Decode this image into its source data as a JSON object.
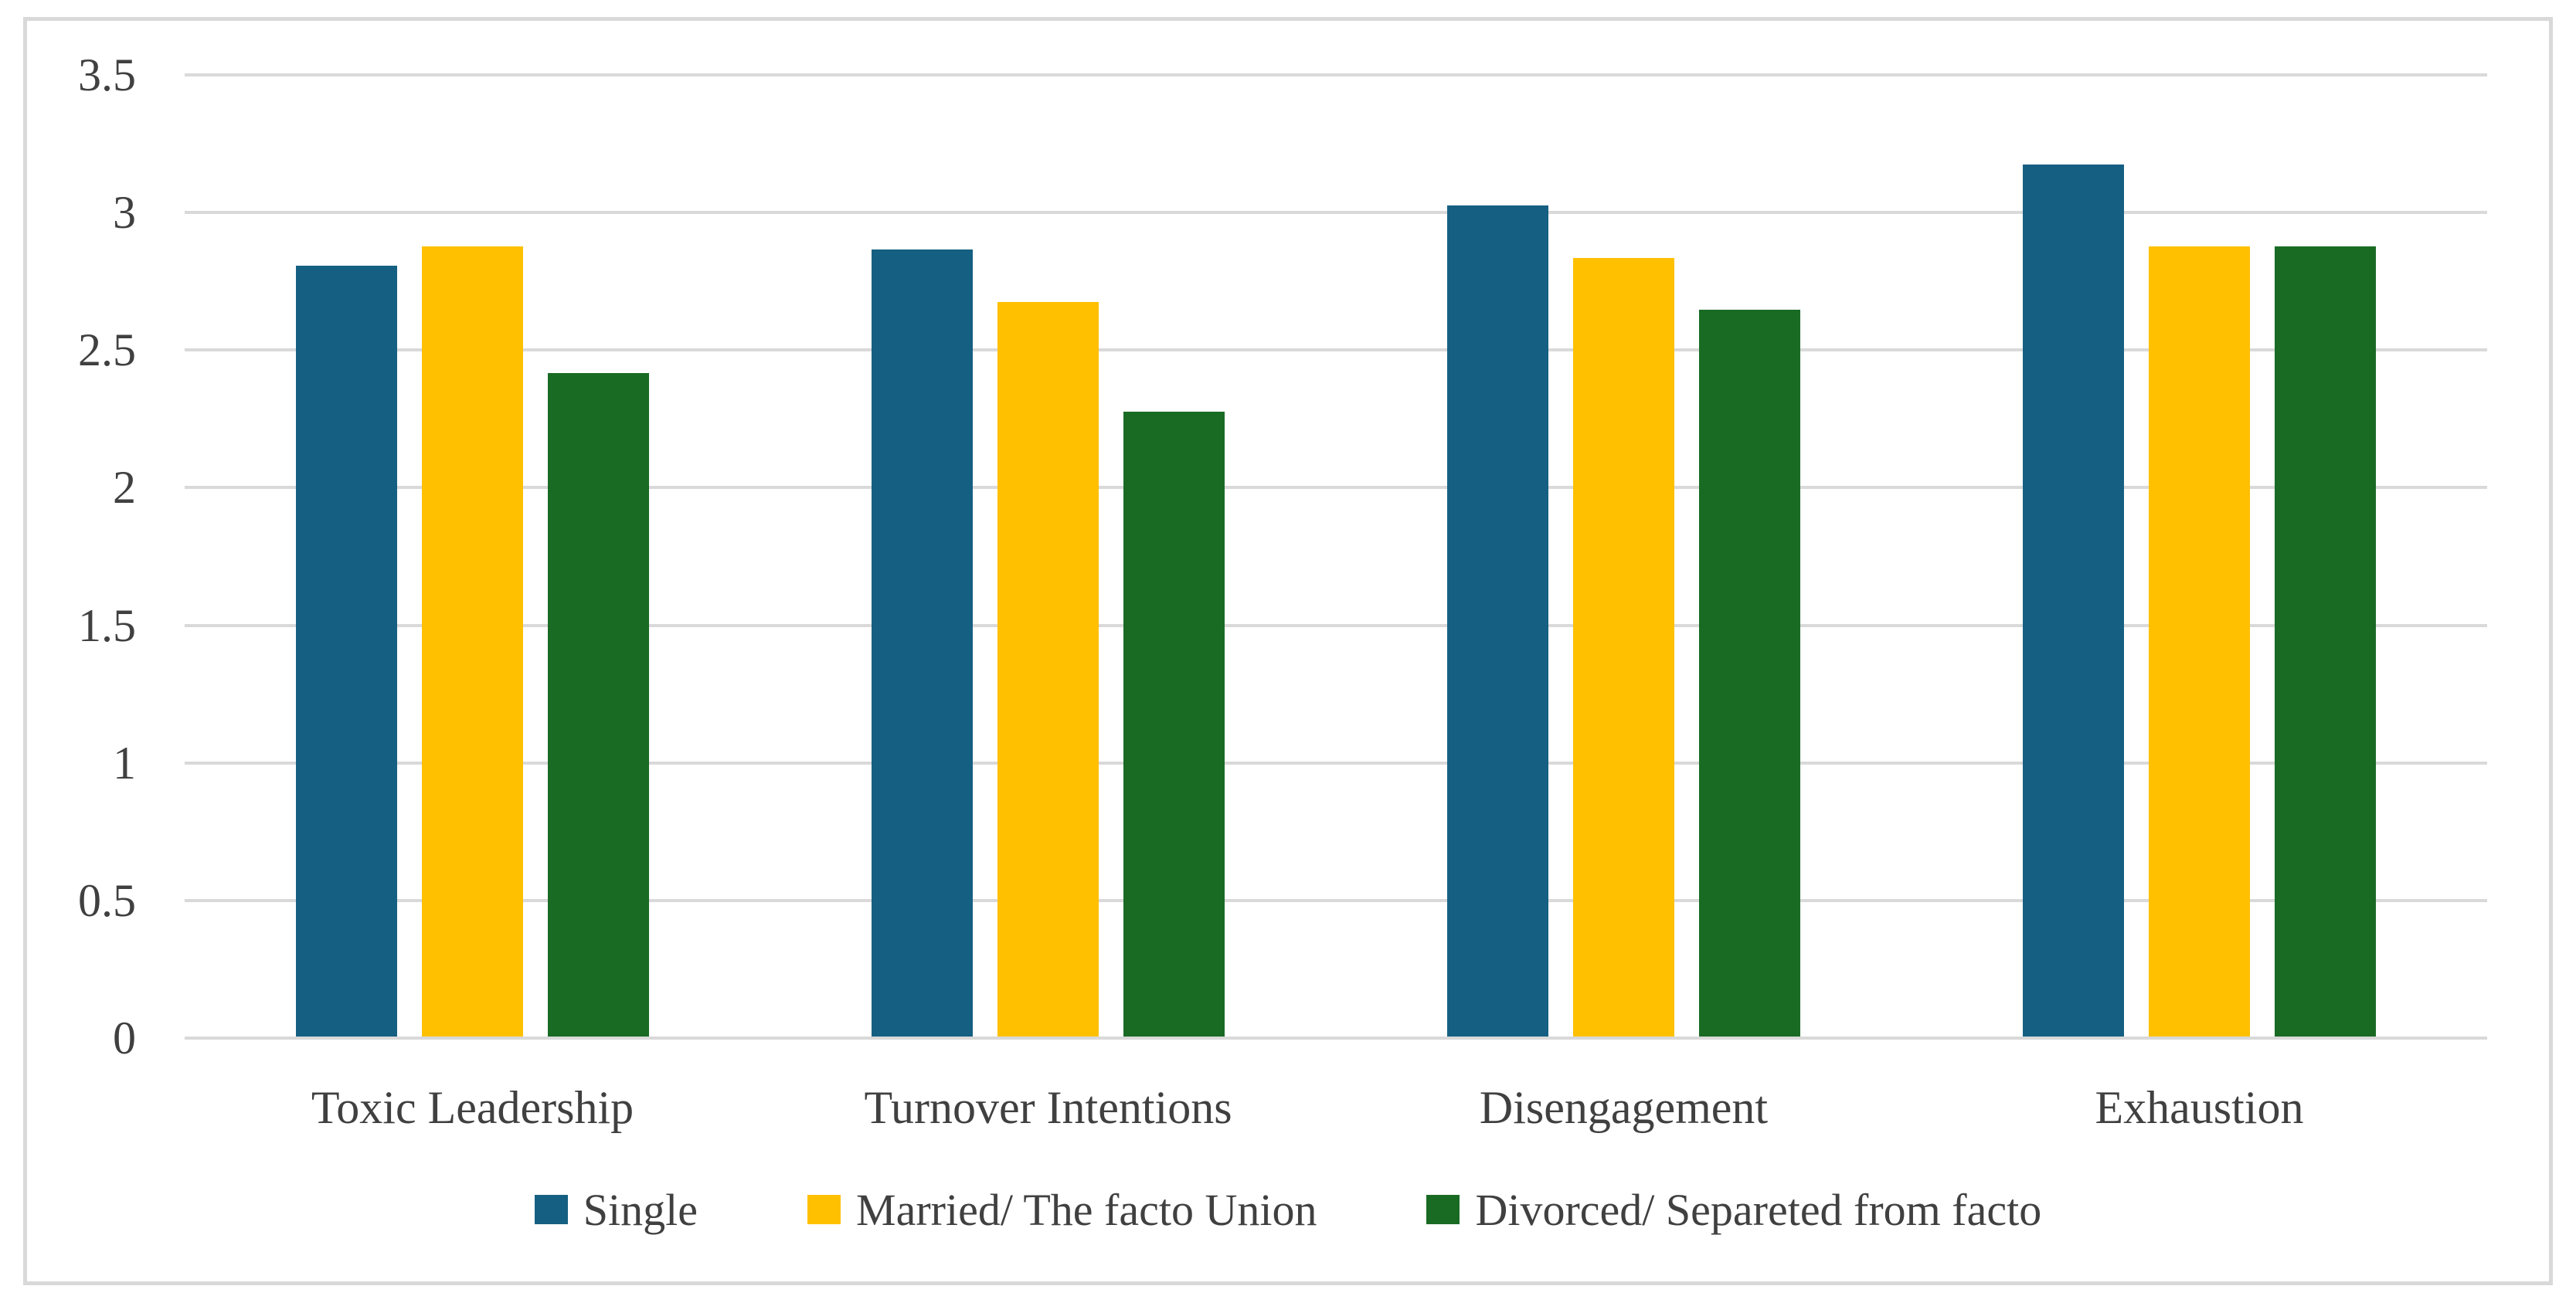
{
  "chart_data": {
    "type": "bar",
    "title": "",
    "xlabel": "",
    "ylabel": "",
    "categories": [
      "Toxic Leadership",
      "Turnover Intentions",
      "Disengagement",
      "Exhaustion"
    ],
    "series": [
      {
        "name": "Single",
        "color": "#156082",
        "values": [
          2.8,
          2.86,
          3.02,
          3.17
        ]
      },
      {
        "name": "Married/ The facto Union",
        "color": "#FFC000",
        "values": [
          2.87,
          2.67,
          2.83,
          2.87
        ]
      },
      {
        "name": "Divorced/ Separeted from facto",
        "color": "#196B24",
        "values": [
          2.41,
          2.27,
          2.64,
          2.87
        ]
      }
    ],
    "ylim": [
      0,
      3.5
    ],
    "yticks": [
      {
        "label": "0",
        "value": 0
      },
      {
        "label": "0.5",
        "value": 0.5
      },
      {
        "label": "1",
        "value": 1
      },
      {
        "label": "1.5",
        "value": 1.5
      },
      {
        "label": "2",
        "value": 2
      },
      {
        "label": "2.5",
        "value": 2.5
      },
      {
        "label": "3",
        "value": 3
      },
      {
        "label": "3.5",
        "value": 3.5
      }
    ],
    "grid": "horizontal",
    "legend_position": "bottom-center",
    "colors": {
      "gridline": "#D9D9D9",
      "frame_border": "#D9D9D9",
      "text": "#404040",
      "background": "#FFFFFF"
    }
  }
}
